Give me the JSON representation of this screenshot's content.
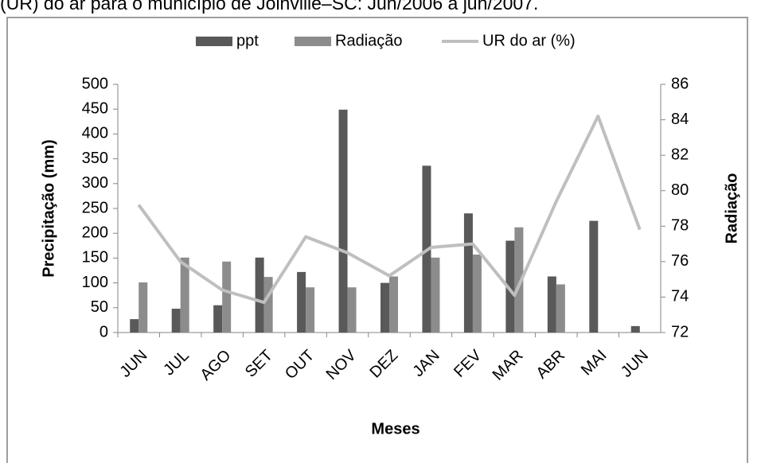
{
  "caption": "(UR) do ar para o município de Joinville–SC: Jun/2006 a jun/2007.",
  "chart_data": {
    "type": "bar",
    "x_label": "Meses",
    "y_label": "Precipitação (mm)",
    "y2_label": "Radiação",
    "categories": [
      "JUN",
      "JUL",
      "AGO",
      "SET",
      "OUT",
      "NOV",
      "DEZ",
      "JAN",
      "FEV",
      "MAR",
      "ABR",
      "MAI",
      "JUN"
    ],
    "series": [
      {
        "name": "ppt",
        "type": "bar",
        "color": "#595959",
        "values": [
          27,
          48,
          55,
          151,
          122,
          449,
          100,
          336,
          240,
          185,
          113,
          225,
          13
        ]
      },
      {
        "name": "Radiação",
        "type": "bar",
        "color": "#8c8c8c",
        "values": [
          101,
          151,
          143,
          112,
          91,
          91,
          113,
          151,
          157,
          212,
          97,
          null,
          null
        ]
      },
      {
        "name": "UR do ar (%)",
        "type": "line",
        "axis": "y2",
        "color": "#bfbfbf",
        "values": [
          79.2,
          76.0,
          74.4,
          73.7,
          77.4,
          76.5,
          75.2,
          76.8,
          77.0,
          74.1,
          79.4,
          84.2,
          77.8
        ]
      }
    ],
    "ylim": [
      0,
      500
    ],
    "yticks": [
      0,
      50,
      100,
      150,
      200,
      250,
      300,
      350,
      400,
      450,
      500
    ],
    "y2lim": [
      72,
      86
    ],
    "y2ticks": [
      72,
      74,
      76,
      78,
      80,
      82,
      84,
      86
    ],
    "grid": false,
    "legend": "top"
  }
}
